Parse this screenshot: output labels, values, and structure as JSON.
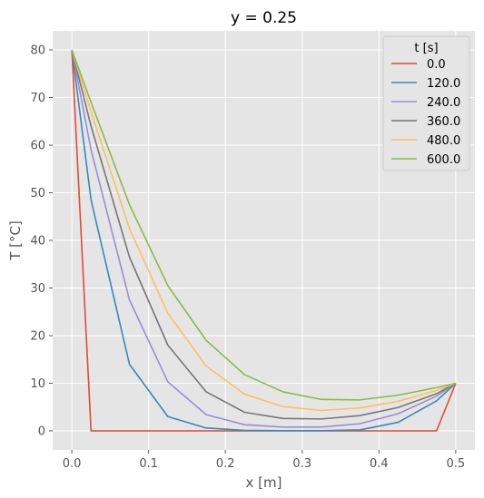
{
  "chart_data": {
    "type": "line",
    "title": "y = 0.25",
    "xlabel": "x [m]",
    "ylabel": "T [°C]",
    "xlim": [
      -0.025,
      0.525
    ],
    "ylim": [
      -4,
      84
    ],
    "xticks": [
      0.0,
      0.1,
      0.2,
      0.3,
      0.4,
      0.5
    ],
    "xtick_labels": [
      "0.0",
      "0.1",
      "0.2",
      "0.3",
      "0.4",
      "0.5"
    ],
    "yticks": [
      0,
      10,
      20,
      30,
      40,
      50,
      60,
      70,
      80
    ],
    "ytick_labels": [
      "0",
      "10",
      "20",
      "30",
      "40",
      "50",
      "60",
      "70",
      "80"
    ],
    "grid": true,
    "legend": {
      "title": "t [s]",
      "placement": "top-right"
    },
    "x": [
      0.0,
      0.025,
      0.075,
      0.125,
      0.175,
      0.225,
      0.275,
      0.325,
      0.375,
      0.425,
      0.475,
      0.5
    ],
    "series": [
      {
        "name": "0.0",
        "color": "#E24A33",
        "values": [
          80,
          0,
          0,
          0,
          0,
          0,
          0,
          0,
          0,
          0,
          0,
          10
        ]
      },
      {
        "name": "120.0",
        "color": "#348ABD",
        "values": [
          80,
          48.5,
          14,
          3,
          0.6,
          0.1,
          0.05,
          0.05,
          0.2,
          1.8,
          6.3,
          10
        ]
      },
      {
        "name": "240.0",
        "color": "#988ED5",
        "values": [
          80,
          59,
          27.5,
          10.3,
          3.4,
          1.3,
          0.8,
          0.8,
          1.5,
          3.6,
          7.3,
          10
        ]
      },
      {
        "name": "360.0",
        "color": "#777777",
        "values": [
          80,
          64,
          36.5,
          18,
          8.2,
          3.9,
          2.6,
          2.5,
          3.2,
          4.9,
          7.8,
          10
        ]
      },
      {
        "name": "480.0",
        "color": "#FBC15E",
        "values": [
          80,
          67,
          42.5,
          24.7,
          13.6,
          7.7,
          5.1,
          4.3,
          4.8,
          6.2,
          8.5,
          10
        ]
      },
      {
        "name": "600.0",
        "color": "#8EBA42",
        "values": [
          80,
          69,
          47.5,
          30.5,
          19,
          11.8,
          8.2,
          6.6,
          6.5,
          7.5,
          9.1,
          10
        ]
      }
    ]
  },
  "colors": {
    "plot_background": "#E5E5E5",
    "grid": "#FFFFFF",
    "text": "#555555",
    "title": "#000000"
  }
}
